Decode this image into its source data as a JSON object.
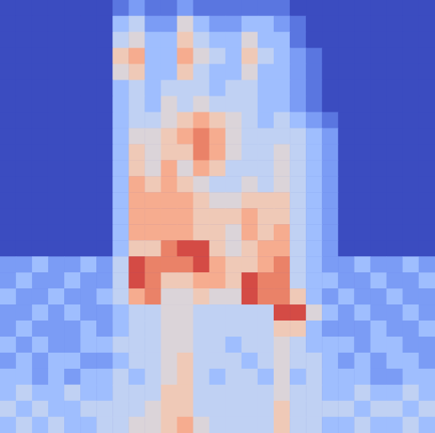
{
  "chart_data": {
    "type": "heatmap",
    "color": "coolwarm",
    "tick_labels": false,
    "zlim": [
      0,
      10
    ],
    "z": [
      [
        0,
        0,
        0,
        0,
        0,
        0,
        0,
        1,
        2,
        1,
        1,
        2,
        1,
        1,
        1,
        1,
        1,
        1,
        0,
        0,
        0,
        0,
        0,
        0,
        0,
        0,
        0
      ],
      [
        0,
        0,
        0,
        0,
        0,
        0,
        0,
        3,
        4,
        2,
        2,
        5,
        3,
        2,
        2,
        3,
        3,
        2,
        1,
        0,
        0,
        0,
        0,
        0,
        0,
        0,
        0
      ],
      [
        0,
        0,
        0,
        0,
        0,
        0,
        0,
        4,
        5,
        3,
        3,
        6,
        4,
        3,
        3,
        5,
        3,
        3,
        1,
        0,
        0,
        0,
        0,
        0,
        0,
        0,
        0
      ],
      [
        0,
        0,
        0,
        0,
        0,
        0,
        0,
        6,
        7,
        3,
        3,
        7,
        5,
        4,
        3,
        6,
        4,
        3,
        2,
        1,
        0,
        0,
        0,
        0,
        0,
        0,
        0
      ],
      [
        0,
        0,
        0,
        0,
        0,
        0,
        0,
        5,
        6,
        3,
        3,
        6,
        4,
        3,
        3,
        5,
        3,
        3,
        2,
        1,
        0,
        0,
        0,
        0,
        0,
        0,
        0
      ],
      [
        0,
        0,
        0,
        0,
        0,
        0,
        0,
        3,
        4,
        3,
        4,
        4,
        4,
        3,
        4,
        4,
        3,
        3,
        2,
        1,
        0,
        0,
        0,
        0,
        0,
        0,
        0
      ],
      [
        0,
        0,
        0,
        0,
        0,
        0,
        0,
        3,
        4,
        3,
        5,
        4,
        5,
        4,
        4,
        4,
        3,
        3,
        2,
        1,
        0,
        0,
        0,
        0,
        0,
        0,
        0
      ],
      [
        0,
        0,
        0,
        0,
        0,
        0,
        0,
        3,
        4,
        4,
        5,
        6,
        7,
        6,
        5,
        4,
        3,
        4,
        3,
        2,
        1,
        0,
        0,
        0,
        0,
        0,
        0
      ],
      [
        0,
        0,
        0,
        0,
        0,
        0,
        0,
        3,
        5,
        5,
        6,
        7,
        8,
        7,
        5,
        4,
        4,
        4,
        4,
        3,
        2,
        0,
        0,
        0,
        0,
        0,
        0
      ],
      [
        0,
        0,
        0,
        0,
        0,
        0,
        0,
        3,
        6,
        5,
        6,
        6,
        8,
        7,
        5,
        4,
        4,
        5,
        4,
        3,
        2,
        0,
        0,
        0,
        0,
        0,
        0
      ],
      [
        0,
        0,
        0,
        0,
        0,
        0,
        0,
        3,
        6,
        5,
        7,
        5,
        7,
        6,
        4,
        4,
        4,
        5,
        4,
        3,
        2,
        0,
        0,
        0,
        0,
        0,
        0
      ],
      [
        0,
        0,
        0,
        0,
        0,
        0,
        0,
        3,
        7,
        6,
        7,
        6,
        5,
        4,
        4,
        5,
        4,
        5,
        4,
        3,
        2,
        0,
        0,
        0,
        0,
        0,
        0
      ],
      [
        0,
        0,
        0,
        0,
        0,
        0,
        0,
        3,
        7,
        7,
        7,
        7,
        6,
        5,
        5,
        6,
        6,
        6,
        4,
        3,
        2,
        0,
        0,
        0,
        0,
        0,
        0
      ],
      [
        0,
        0,
        0,
        0,
        0,
        0,
        0,
        3,
        7,
        7,
        7,
        7,
        6,
        6,
        6,
        7,
        6,
        6,
        4,
        3,
        2,
        0,
        0,
        0,
        0,
        0,
        0
      ],
      [
        0,
        0,
        0,
        0,
        0,
        0,
        0,
        3,
        7,
        7,
        7,
        7,
        6,
        6,
        5,
        7,
        6,
        7,
        4,
        3,
        2,
        0,
        0,
        0,
        0,
        0,
        0
      ],
      [
        0,
        0,
        0,
        0,
        0,
        0,
        0,
        3,
        6,
        6,
        8,
        9,
        9,
        6,
        5,
        6,
        7,
        7,
        4,
        3,
        2,
        0,
        0,
        0,
        0,
        0,
        0
      ],
      [
        2,
        2,
        3,
        2,
        2,
        3,
        2,
        4,
        9,
        8,
        8,
        8,
        9,
        7,
        6,
        6,
        7,
        8,
        4,
        3,
        2,
        2,
        3,
        2,
        2,
        3,
        2
      ],
      [
        2,
        3,
        2,
        2,
        3,
        2,
        2,
        4,
        9,
        8,
        6,
        6,
        7,
        7,
        6,
        9,
        8,
        8,
        4,
        3,
        3,
        2,
        2,
        3,
        2,
        2,
        3
      ],
      [
        3,
        2,
        2,
        3,
        2,
        2,
        3,
        4,
        7,
        8,
        5,
        5,
        6,
        5,
        5,
        9,
        8,
        8,
        6,
        3,
        2,
        3,
        2,
        2,
        3,
        2,
        2
      ],
      [
        2,
        2,
        3,
        2,
        3,
        2,
        2,
        3,
        4,
        4,
        5,
        5,
        4,
        4,
        4,
        4,
        4,
        9,
        9,
        5,
        3,
        2,
        3,
        2,
        2,
        3,
        2
      ],
      [
        2,
        3,
        2,
        2,
        2,
        3,
        2,
        3,
        4,
        4,
        5,
        5,
        4,
        4,
        4,
        4,
        4,
        6,
        6,
        3,
        2,
        2,
        2,
        3,
        2,
        2,
        3
      ],
      [
        3,
        2,
        3,
        2,
        2,
        3,
        3,
        4,
        4,
        4,
        5,
        5,
        4,
        4,
        3,
        4,
        4,
        5,
        4,
        3,
        3,
        3,
        2,
        3,
        3,
        2,
        2
      ],
      [
        2,
        3,
        2,
        3,
        3,
        2,
        2,
        3,
        4,
        4,
        5,
        6,
        4,
        4,
        4,
        3,
        4,
        5,
        4,
        4,
        3,
        2,
        3,
        2,
        3,
        3,
        2
      ],
      [
        3,
        3,
        2,
        3,
        2,
        3,
        3,
        4,
        3,
        4,
        5,
        6,
        4,
        3,
        4,
        4,
        3,
        5,
        3,
        4,
        3,
        3,
        3,
        2,
        2,
        3,
        3
      ],
      [
        3,
        4,
        3,
        3,
        4,
        3,
        3,
        4,
        4,
        4,
        6,
        6,
        4,
        4,
        4,
        4,
        4,
        5,
        4,
        4,
        3,
        3,
        4,
        3,
        3,
        4,
        3
      ],
      [
        4,
        3,
        4,
        3,
        3,
        4,
        4,
        4,
        4,
        5,
        6,
        6,
        4,
        4,
        4,
        4,
        4,
        6,
        4,
        4,
        4,
        4,
        3,
        4,
        4,
        3,
        4
      ],
      [
        3,
        4,
        3,
        4,
        3,
        3,
        4,
        4,
        5,
        5,
        6,
        7,
        5,
        4,
        4,
        4,
        4,
        6,
        4,
        4,
        3,
        3,
        4,
        3,
        3,
        4,
        3
      ]
    ]
  }
}
